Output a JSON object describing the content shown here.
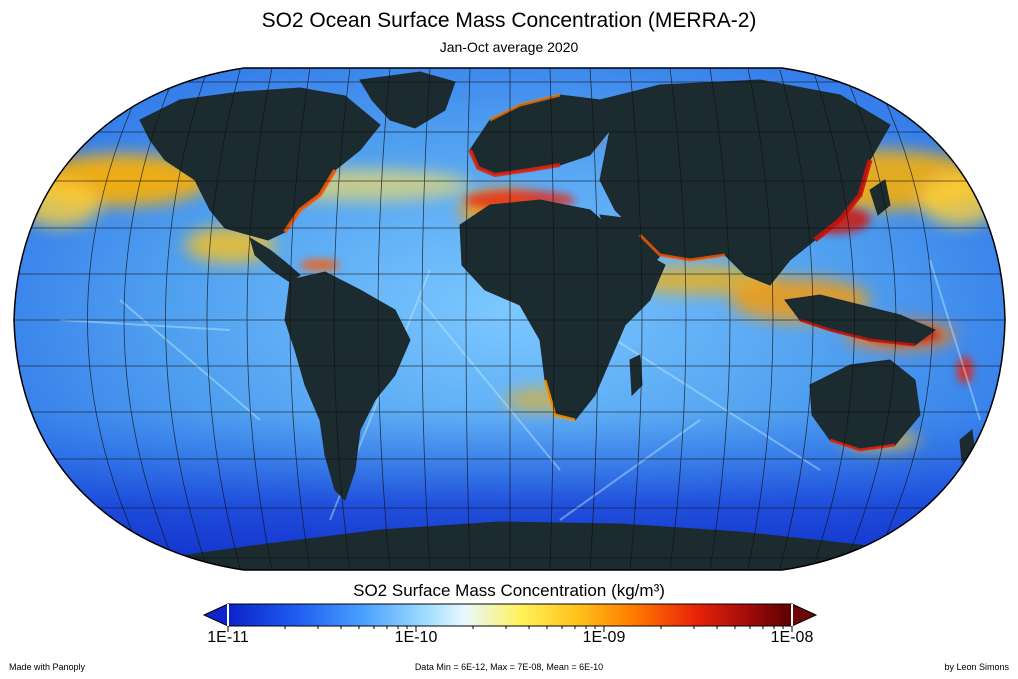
{
  "title": "SO2 Ocean Surface Mass Concentration (MERRA-2)",
  "subtitle": "Jan-Oct average 2020",
  "colorbar": {
    "title": "SO2 Surface Mass Concentration (kg/m³)",
    "ticks": [
      "1E-11",
      "1E-10",
      "1E-09",
      "1E-08"
    ],
    "colors": [
      "#0b22c8",
      "#1f5cf0",
      "#4aa0ff",
      "#9fdcff",
      "#eaf8ff",
      "#fff25a",
      "#ffc21a",
      "#ff7a00",
      "#e8230a",
      "#9a0a0a",
      "#5a0000"
    ],
    "underflow_color": "#1022cc",
    "overflow_color": "#6e0808"
  },
  "footer": {
    "left": "Made with Panoply",
    "center": "Data Min = 6E-12, Max = 7E-08, Mean = 6E-10",
    "right": "by Leon Simons"
  },
  "map": {
    "projection": "Robinson",
    "land_color": "#1c2b30",
    "ocean_low_color": "#2a6fe8",
    "ocean_mid_color": "#7cc8ff",
    "southern_ocean_color": "#1a44d8",
    "high_color": "#ff9a00",
    "peak_color": "#c8140a",
    "grid_color": "#111111"
  }
}
